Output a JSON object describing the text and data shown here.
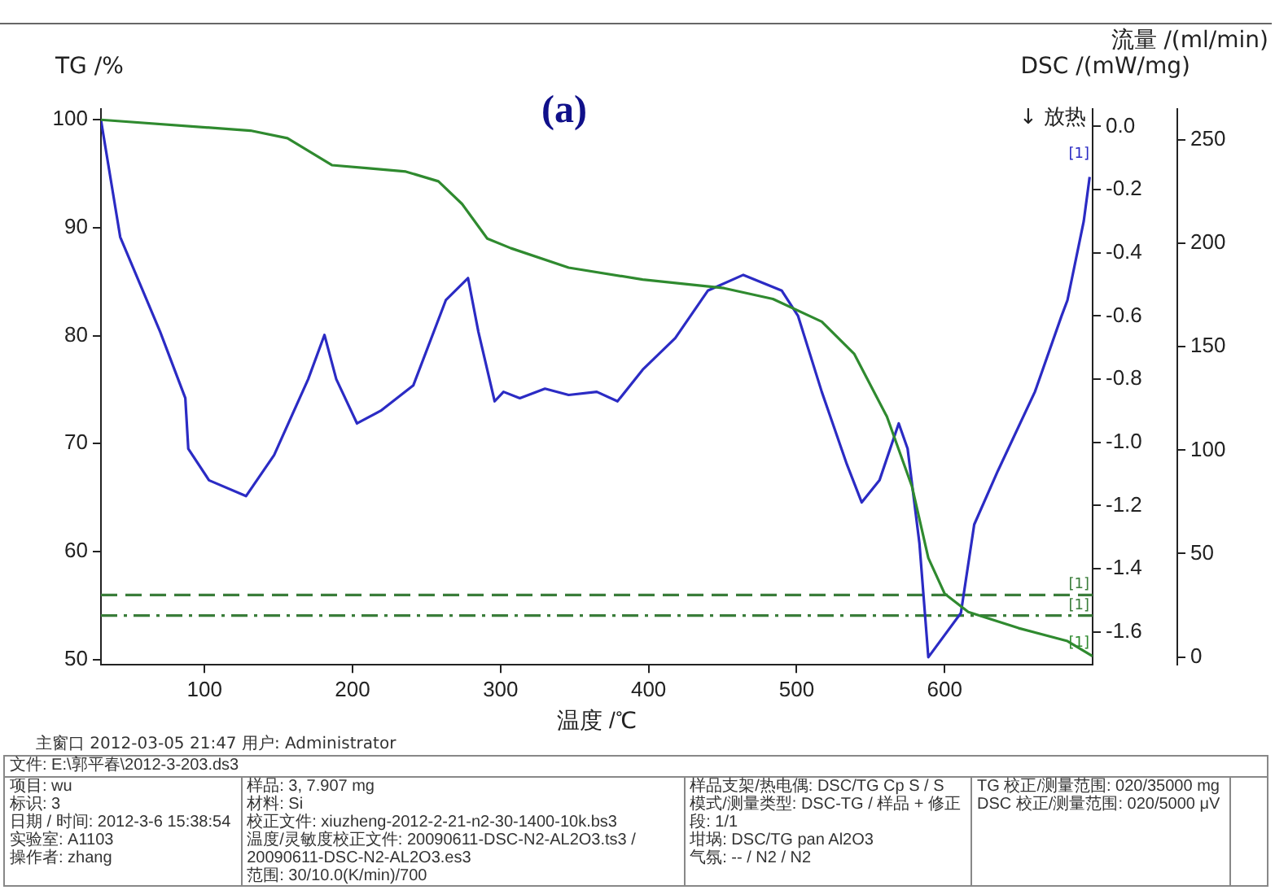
{
  "chart_data": {
    "type": "line",
    "xlabel": "温度 /℃",
    "ylabel": "TG /%",
    "y2label": "DSC /(mW/mg)",
    "y3label": "流量 /(ml/min)",
    "xlim": [
      30,
      700
    ],
    "xticks": [
      100,
      200,
      300,
      400,
      500,
      600
    ],
    "ylim": [
      49.5,
      101
    ],
    "yticks": [
      50,
      60,
      70,
      80,
      90,
      100
    ],
    "y2lim": [
      -1.704,
      0.055
    ],
    "y2ticks": [
      {
        "value": 0,
        "label": "0.0"
      },
      -0.2,
      -0.4,
      -0.6,
      -0.8,
      {
        "value": -1,
        "label": "-1.0"
      },
      -1.2,
      -1.4,
      -1.6
    ],
    "y3lim": [
      -3.8,
      265
    ],
    "y3ticks": [
      0,
      50,
      100,
      150,
      200,
      250
    ],
    "legend": false,
    "grid": false,
    "marker": "none",
    "series": [
      {
        "color": "#2f8a2f",
        "line_style": "solid",
        "x": [
          30,
          131,
          156,
          186,
          211,
          236,
          258,
          274,
          291,
          307,
          346,
          396,
          451,
          484,
          517,
          539,
          561,
          578,
          589,
          600,
          616,
          650,
          683,
          700
        ],
        "values": [
          100,
          99.0,
          98.3,
          95.8,
          95.5,
          95.2,
          94.3,
          92.2,
          89.0,
          88.1,
          86.3,
          85.2,
          84.4,
          83.4,
          81.3,
          78.3,
          72.5,
          66.0,
          59.4,
          56.1,
          54.4,
          52.9,
          51.7,
          50.3
        ]
      },
      {
        "color": "#2b2bc4",
        "line_style": "solid",
        "axis": "y2",
        "x": [
          30,
          43,
          70,
          87,
          89,
          103,
          128,
          147,
          170,
          181,
          189,
          203,
          219,
          241,
          263,
          278,
          285,
          296,
          302,
          313,
          330,
          346,
          365,
          379,
          396,
          418,
          440,
          464,
          490,
          501,
          517,
          534,
          544,
          556,
          569,
          575,
          583,
          589,
          611,
          620,
          636,
          661,
          679,
          683,
          694,
          698
        ],
        "values": [
          0.02,
          -0.35,
          -0.65,
          -0.86,
          -1.02,
          -1.12,
          -1.17,
          -1.04,
          -0.8,
          -0.66,
          -0.8,
          -0.94,
          -0.9,
          -0.82,
          -0.55,
          -0.48,
          -0.65,
          -0.87,
          -0.84,
          -0.86,
          -0.83,
          -0.85,
          -0.84,
          -0.87,
          -0.77,
          -0.67,
          -0.52,
          -0.47,
          -0.52,
          -0.6,
          -0.84,
          -1.07,
          -1.19,
          -1.12,
          -0.94,
          -1.02,
          -1.32,
          -1.68,
          -1.54,
          -1.26,
          -1.09,
          -0.84,
          -0.6,
          -0.55,
          -0.3,
          -0.16
        ]
      },
      {
        "color": "#3a7d3a",
        "line_style": "dashed",
        "axis": "y3",
        "x": [
          30,
          700
        ],
        "values": [
          30,
          30
        ]
      },
      {
        "color": "#3a7d3a",
        "line_style": "dashdot",
        "axis": "y3",
        "x": [
          30,
          700
        ],
        "values": [
          20,
          20
        ]
      }
    ],
    "annotations": [
      "(a)",
      "↓ 放热",
      "[1]",
      "[1]",
      "[1]",
      "[1]",
      "主窗口  2012-03-05 21:47  用户: Administrator",
      "文件: E:\\郭平春\\2012-3-203.ds3",
      "项目: wu",
      "标识: 3",
      "日期 / 时间: 2012-3-6 15:38:54",
      "实验室: A1103",
      "操作者: zhang",
      "样品: 3, 7.907 mg",
      "材料: Si",
      "校正文件: xiuzheng-2012-2-21-n2-30-1400-10k.bs3",
      "温度/灵敏度校正文件: 20090611-DSC-N2-AL2O3.ts3 / 20090611-DSC-N2-AL2O3.es3",
      "范围: 30/10.0(K/min)/700",
      "样品支架/热电偶: DSC/TG Cp S / S",
      "模式/测量类型: DSC-TG / 样品 + 修正",
      "段: 1/1",
      "坩埚: DSC/TG pan Al2O3",
      "气氛: -- / N2 / N2",
      "TG 校正/测量范围: 020/35000 mg",
      "DSC 校正/测量范围: 020/5000 μV"
    ]
  }
}
